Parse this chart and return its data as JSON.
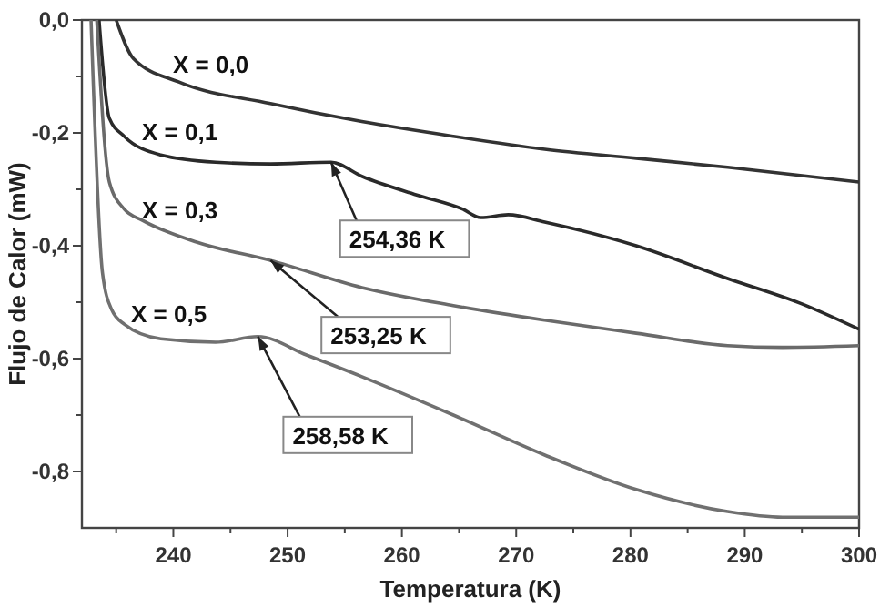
{
  "chart_data": {
    "type": "line",
    "xlabel": "Temperatura (K)",
    "ylabel": "Flujo de Calor (mW)",
    "xlim": [
      232,
      300
    ],
    "ylim": [
      -0.9,
      0
    ],
    "xticks": [
      {
        "value": 235,
        "label": null
      },
      240,
      {
        "value": 245,
        "label": null
      },
      250,
      {
        "value": 255,
        "label": null
      },
      260,
      {
        "value": 265,
        "label": null
      },
      270,
      {
        "value": 275,
        "label": null
      },
      280,
      {
        "value": 285,
        "label": null
      },
      290,
      {
        "value": 295,
        "label": null
      },
      300
    ],
    "yticks": [
      {
        "value": 0,
        "label": "0,0"
      },
      {
        "value": -0.1,
        "label": null
      },
      {
        "value": -0.2,
        "label": "-0,2"
      },
      {
        "value": -0.3,
        "label": null
      },
      {
        "value": -0.4,
        "label": "-0,4"
      },
      {
        "value": -0.5,
        "label": null
      },
      {
        "value": -0.6,
        "label": "-0,6"
      },
      {
        "value": -0.7,
        "label": null
      },
      {
        "value": -0.8,
        "label": "-0,8"
      }
    ],
    "grid": false,
    "line_style": "solid",
    "series": [
      {
        "name": "X = 0,0",
        "color": "#333333",
        "x": [
          235.0,
          236.5,
          240.5,
          248.5,
          256.5,
          264.5,
          272.5,
          280.5,
          288.5,
          300
        ],
        "values": [
          0,
          -0.068,
          -0.11,
          -0.148,
          -0.18,
          -0.206,
          -0.229,
          -0.245,
          -0.261,
          -0.287
        ]
      },
      {
        "name": "X = 0,1",
        "color": "#2a2a2a",
        "x": [
          233.5,
          234.4,
          235.7,
          238.9,
          243.7,
          248.5,
          253.8,
          256.5,
          261.3,
          265.3,
          266.9,
          269.3,
          272.5,
          280.5,
          288.5,
          295,
          300
        ],
        "values": [
          0,
          -0.174,
          -0.206,
          -0.239,
          -0.252,
          -0.255,
          -0.252,
          -0.277,
          -0.31,
          -0.335,
          -0.35,
          -0.345,
          -0.358,
          -0.4,
          -0.458,
          -0.503,
          -0.548
        ]
      },
      {
        "name": "X = 0,3",
        "color": "#6a6a6a",
        "x": [
          233.3,
          234.4,
          235.7,
          237.3,
          242.1,
          248.5,
          256.5,
          264.5,
          272.5,
          280.5,
          288.5,
          293.3,
          300
        ],
        "values": [
          0,
          -0.287,
          -0.335,
          -0.355,
          -0.394,
          -0.426,
          -0.474,
          -0.506,
          -0.532,
          -0.555,
          -0.577,
          -0.58,
          -0.577
        ]
      },
      {
        "name": "X = 0,5",
        "color": "#707070",
        "x": [
          232.8,
          233.8,
          234.6,
          235.7,
          238.9,
          243.7,
          247.4,
          251.7,
          256.5,
          264.5,
          272.5,
          280.5,
          288.5,
          293.3,
          300
        ],
        "values": [
          0,
          -0.448,
          -0.513,
          -0.539,
          -0.565,
          -0.571,
          -0.561,
          -0.594,
          -0.632,
          -0.7,
          -0.771,
          -0.832,
          -0.871,
          -0.881,
          -0.881
        ]
      }
    ],
    "annotations": [
      {
        "text": "254,36 K",
        "x": 253.8,
        "y": -0.252
      },
      {
        "text": "253,25 K",
        "x": 248.5,
        "y": -0.426
      },
      {
        "text": "258,58 K",
        "x": 247.4,
        "y": -0.561
      }
    ]
  }
}
